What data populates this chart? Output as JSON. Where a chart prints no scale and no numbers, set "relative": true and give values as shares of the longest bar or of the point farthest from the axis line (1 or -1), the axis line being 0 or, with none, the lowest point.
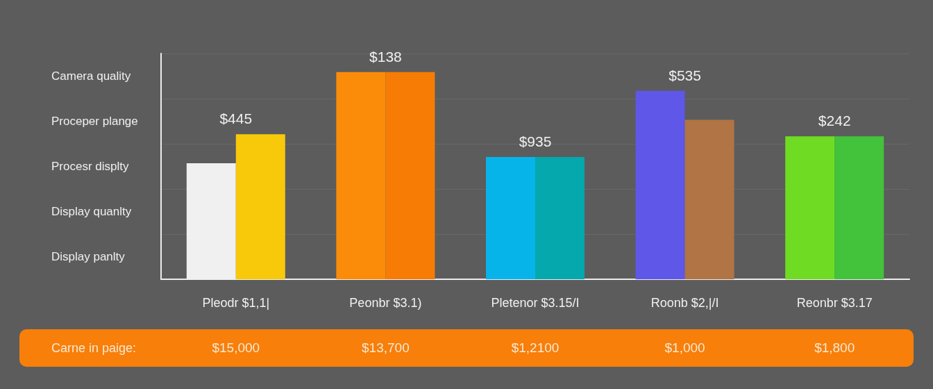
{
  "chart_data": {
    "type": "bar",
    "relative": true,
    "grid": "y",
    "categories": [
      "Pleodr $1,1|",
      "Peonbr $3.1)",
      "Pletenor $3.15/I",
      "Roonb $2,|/I",
      "Reonbr $3.17"
    ],
    "series": [
      {
        "colors": [
          "#f0f0f0",
          "#fb8c0a",
          "#07b4ea",
          "#5f57e8",
          "#6fdc23"
        ],
        "values": [
          0.56,
          1,
          0.59,
          0.91,
          0.69
        ]
      },
      {
        "colors": [
          "#f8c80a",
          "#f77c05",
          "#05a8ad",
          "#b07445",
          "#43c23c"
        ],
        "values": [
          0.7,
          1,
          0.59,
          0.77,
          0.69
        ]
      }
    ],
    "annotations": [
      {
        "text": "$445",
        "x": "Pleodr $1,1|",
        "y": 0.7
      },
      {
        "text": "$138",
        "x": "Peonbr $3.1)",
        "y": 1
      },
      {
        "text": "$935",
        "x": "Pletenor $3.15/I",
        "y": 0.59
      },
      {
        "text": "$535",
        "x": "Roonb $2,|/I",
        "y": 0.91
      },
      {
        "text": "$242",
        "x": "Reonbr $3.17",
        "y": 0.69
      },
      "Camera quality",
      "Proceper plange",
      "Procesr displty",
      "Display quanlty",
      "Display panlty",
      "Carne in paige:",
      "$15,000",
      "$13,700",
      "$1,2100",
      "$1,000",
      "$1,800"
    ]
  }
}
